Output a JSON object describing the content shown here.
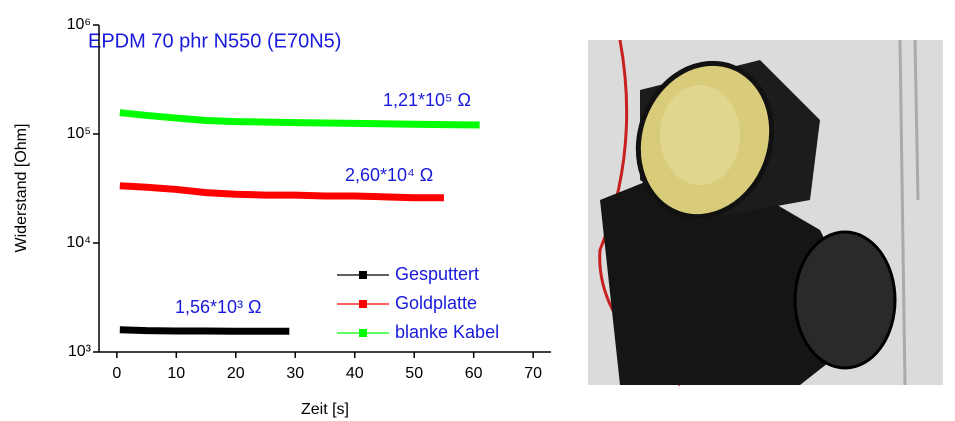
{
  "chart_data": {
    "type": "line",
    "title": "EPDM 70 phr N550 (E70N5)",
    "xlabel": "Zeit [s]",
    "ylabel": "Widerstand [Ohm]",
    "xlim": [
      -3,
      73
    ],
    "xticks": [
      0,
      10,
      20,
      30,
      40,
      50,
      60,
      70
    ],
    "ylim": [
      1000,
      1000000
    ],
    "yticks": [
      {
        "value": 1000,
        "label": "10³"
      },
      {
        "value": 10000,
        "label": "10⁴"
      },
      {
        "value": 100000,
        "label": "10⁵"
      },
      {
        "value": 1000000,
        "label": "10⁶"
      }
    ],
    "log_y": true,
    "legend": "lower right",
    "series": [
      {
        "name": "Gesputtert",
        "color": "#000000",
        "x": [
          0.5,
          5,
          10,
          15,
          20,
          25,
          29
        ],
        "values": [
          1600,
          1570,
          1560,
          1560,
          1550,
          1550,
          1550
        ]
      },
      {
        "name": "Goldplatte",
        "color": "#ff0000",
        "x": [
          0.5,
          5,
          10,
          15,
          20,
          25,
          30,
          35,
          40,
          45,
          50,
          55
        ],
        "values": [
          33500,
          32500,
          31000,
          29000,
          28000,
          27500,
          27500,
          27000,
          27000,
          26500,
          26000,
          26000
        ]
      },
      {
        "name": "blanke Kabel",
        "color": "#00ff00",
        "x": [
          0.5,
          5,
          10,
          15,
          20,
          30,
          40,
          50,
          55,
          61
        ],
        "values": [
          157000,
          148000,
          140000,
          133000,
          130000,
          127000,
          125000,
          123000,
          122000,
          121000
        ]
      }
    ],
    "annotations": [
      "1,56*10³ Ω",
      "2,60*10⁴ Ω",
      "1,21*10⁵ Ω"
    ]
  }
}
